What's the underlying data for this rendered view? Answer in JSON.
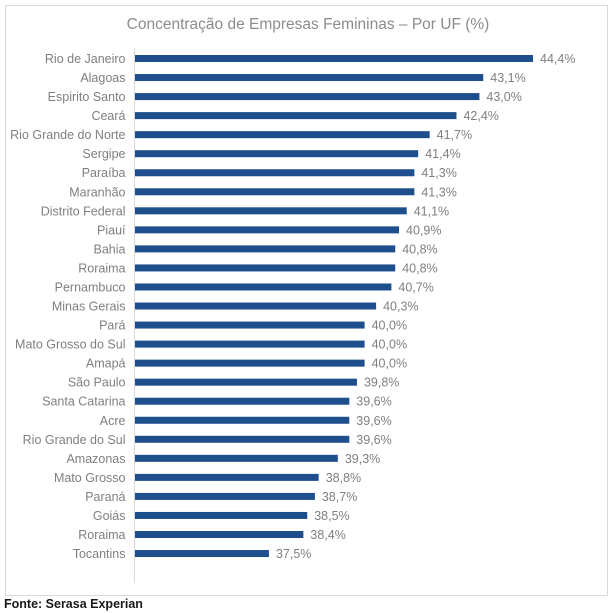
{
  "chart_data": {
    "type": "bar",
    "orientation": "horizontal",
    "title": "Concentração de Empresas Femininas – Por UF (%)",
    "xlabel": "",
    "ylabel": "",
    "xlim": [
      34.0,
      44.4
    ],
    "grid": false,
    "legend": "none",
    "bar_color": "#1F4E8C",
    "categories": [
      "Rio de Janeiro",
      "Alagoas",
      "Espirito Santo",
      "Ceará",
      "Rio Grande do Norte",
      "Sergipe",
      "Paraíba",
      "Maranhão",
      "Distrito Federal",
      "Piauí",
      "Bahia",
      "Roraima",
      "Pernambuco",
      "Minas Gerais",
      "Pará",
      "Mato Grosso do Sul",
      "Amapá",
      "São Paulo",
      "Santa Catarina",
      "Acre",
      "Rio Grande do Sul",
      "Amazonas",
      "Mato Grosso",
      "Paraná",
      "Goiás",
      "Roraima",
      "Tocantins"
    ],
    "values": [
      44.4,
      43.1,
      43.0,
      42.4,
      41.7,
      41.4,
      41.3,
      41.3,
      41.1,
      40.9,
      40.8,
      40.8,
      40.7,
      40.3,
      40.0,
      40.0,
      40.0,
      39.8,
      39.6,
      39.6,
      39.6,
      39.3,
      38.8,
      38.7,
      38.5,
      38.4,
      37.5
    ],
    "data_labels": [
      "44,4%",
      "43,1%",
      "43,0%",
      "42,4%",
      "41,7%",
      "41,4%",
      "41,3%",
      "41,3%",
      "41,1%",
      "40,9%",
      "40,8%",
      "40,8%",
      "40,7%",
      "40,3%",
      "40,0%",
      "40,0%",
      "40,0%",
      "39,8%",
      "39,6%",
      "39,6%",
      "39,6%",
      "39,3%",
      "38,8%",
      "38,7%",
      "38,5%",
      "38,4%",
      "37,5%"
    ]
  },
  "source": "Fonte: Serasa Experian"
}
